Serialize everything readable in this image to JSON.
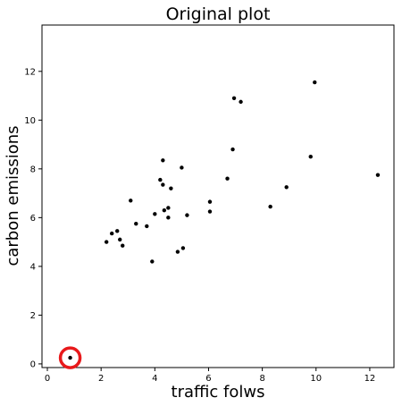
{
  "chart_data": {
    "type": "scatter",
    "title": "Original plot",
    "xlabel": "traffic folws",
    "ylabel": "carbon emissions",
    "xlim": [
      -0.2,
      12.9
    ],
    "ylim": [
      -0.15,
      13.9
    ],
    "xticks": [
      0,
      2,
      4,
      6,
      8,
      10,
      12
    ],
    "yticks": [
      0,
      2,
      4,
      6,
      8,
      10,
      12
    ],
    "grid": false,
    "point_color": "#000000",
    "highlight_color": "#e8191b",
    "points": [
      {
        "x": 2.2,
        "y": 5.0
      },
      {
        "x": 2.4,
        "y": 5.35
      },
      {
        "x": 2.6,
        "y": 5.45
      },
      {
        "x": 2.7,
        "y": 5.1
      },
      {
        "x": 2.8,
        "y": 4.85
      },
      {
        "x": 3.1,
        "y": 6.7
      },
      {
        "x": 3.3,
        "y": 5.75
      },
      {
        "x": 3.7,
        "y": 5.65
      },
      {
        "x": 3.9,
        "y": 4.2
      },
      {
        "x": 4.0,
        "y": 6.15
      },
      {
        "x": 4.2,
        "y": 7.55
      },
      {
        "x": 4.3,
        "y": 7.35
      },
      {
        "x": 4.3,
        "y": 8.35
      },
      {
        "x": 4.35,
        "y": 6.3
      },
      {
        "x": 4.5,
        "y": 6.4
      },
      {
        "x": 4.5,
        "y": 6.0
      },
      {
        "x": 4.6,
        "y": 7.2
      },
      {
        "x": 4.85,
        "y": 4.6
      },
      {
        "x": 5.0,
        "y": 8.05
      },
      {
        "x": 5.05,
        "y": 4.75
      },
      {
        "x": 5.2,
        "y": 6.1
      },
      {
        "x": 6.05,
        "y": 6.65
      },
      {
        "x": 6.05,
        "y": 6.25
      },
      {
        "x": 6.7,
        "y": 7.6
      },
      {
        "x": 6.9,
        "y": 8.8
      },
      {
        "x": 6.95,
        "y": 10.9
      },
      {
        "x": 7.2,
        "y": 10.75
      },
      {
        "x": 8.3,
        "y": 6.45
      },
      {
        "x": 8.9,
        "y": 7.25
      },
      {
        "x": 9.8,
        "y": 8.5
      },
      {
        "x": 9.95,
        "y": 11.55
      },
      {
        "x": 12.3,
        "y": 7.75
      }
    ],
    "highlighted_point": {
      "x": 0.85,
      "y": 0.25
    }
  }
}
